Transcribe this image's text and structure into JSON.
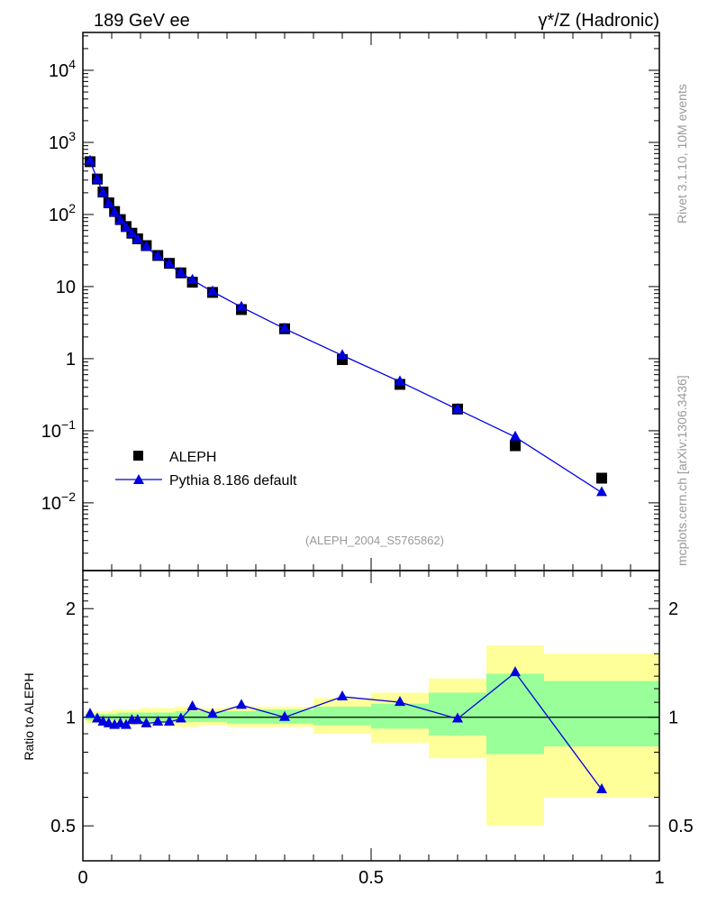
{
  "chart_data": [
    {
      "type": "scatter",
      "title_left": "189 GeV ee",
      "title_right": "γ*/Z (Hadronic)",
      "analysis_label": "(ALEPH_2004_S5765862)",
      "side_label_top": "Rivet 3.1.10,  10M events",
      "side_label_bottom": "mcplots.cern.ch [arXiv:1306.3436]",
      "yscale": "log",
      "ylim": [
        0.00115,
        33500
      ],
      "xlim": [
        0,
        1
      ],
      "ytick_labels": [
        "10^-2",
        "10^-1",
        "1",
        "10",
        "10^2",
        "10^3",
        "10^4"
      ],
      "ytick_values": [
        0.01,
        0.1,
        1,
        10,
        100,
        1000,
        10000
      ],
      "legend_position": "bottom-left",
      "x": [
        0.0125,
        0.025,
        0.035,
        0.045,
        0.055,
        0.065,
        0.075,
        0.085,
        0.095,
        0.11,
        0.13,
        0.15,
        0.17,
        0.19,
        0.225,
        0.275,
        0.35,
        0.45,
        0.55,
        0.65,
        0.75,
        0.9
      ],
      "series": [
        {
          "name": "ALEPH",
          "color": "#000000",
          "marker": "square",
          "values": [
            540,
            310,
            205,
            145,
            110,
            85,
            68,
            55,
            46,
            37,
            27,
            21,
            15.5,
            11.5,
            8.3,
            4.8,
            2.6,
            0.97,
            0.44,
            0.2,
            0.062,
            0.022
          ]
        },
        {
          "name": "Pythia 8.186 default",
          "color": "#0000e0",
          "marker": "triangle",
          "values": [
            551,
            307,
            199,
            139,
            105,
            82,
            65,
            54,
            45,
            35.5,
            26.2,
            20.4,
            15.3,
            12.3,
            8.5,
            5.2,
            2.6,
            1.11,
            0.48,
            0.198,
            0.082,
            0.0139
          ]
        }
      ]
    },
    {
      "type": "line",
      "ylabel": "Ratio to ALEPH",
      "yscale": "log",
      "ylim": [
        0.4,
        2.55
      ],
      "xlim": [
        0,
        1
      ],
      "ytick_labels": [
        "0.5",
        "1",
        "2"
      ],
      "ytick_values": [
        0.5,
        1,
        2
      ],
      "xtick_labels": [
        "0",
        "0.5",
        "1"
      ],
      "xtick_values": [
        0,
        0.5,
        1
      ],
      "x": [
        0.0125,
        0.025,
        0.035,
        0.045,
        0.055,
        0.065,
        0.075,
        0.085,
        0.095,
        0.11,
        0.13,
        0.15,
        0.17,
        0.19,
        0.225,
        0.275,
        0.35,
        0.45,
        0.55,
        0.65,
        0.75,
        0.9
      ],
      "ratio": [
        1.02,
        0.99,
        0.97,
        0.96,
        0.95,
        0.96,
        0.95,
        0.98,
        0.98,
        0.96,
        0.97,
        0.97,
        0.99,
        1.07,
        1.02,
        1.08,
        1.0,
        1.14,
        1.1,
        0.99,
        1.33,
        0.63
      ],
      "band_edges": [
        0.005,
        0.02,
        0.03,
        0.04,
        0.05,
        0.06,
        0.07,
        0.08,
        0.09,
        0.1,
        0.12,
        0.14,
        0.16,
        0.18,
        0.2,
        0.25,
        0.3,
        0.4,
        0.5,
        0.6,
        0.7,
        0.8,
        1.0
      ],
      "green_band": [
        [
          0.98,
          1.02
        ],
        [
          0.98,
          1.02
        ],
        [
          0.98,
          1.02
        ],
        [
          0.98,
          1.02
        ],
        [
          0.98,
          1.02
        ],
        [
          0.98,
          1.03
        ],
        [
          0.98,
          1.03
        ],
        [
          0.98,
          1.03
        ],
        [
          0.98,
          1.03
        ],
        [
          0.97,
          1.03
        ],
        [
          0.97,
          1.03
        ],
        [
          0.97,
          1.03
        ],
        [
          0.97,
          1.04
        ],
        [
          0.97,
          1.04
        ],
        [
          0.97,
          1.04
        ],
        [
          0.96,
          1.04
        ],
        [
          0.96,
          1.05
        ],
        [
          0.95,
          1.07
        ],
        [
          0.93,
          1.09
        ],
        [
          0.89,
          1.17
        ],
        [
          0.79,
          1.32
        ],
        [
          0.83,
          1.26
        ]
      ],
      "yellow_band": [
        [
          0.96,
          1.04
        ],
        [
          0.96,
          1.04
        ],
        [
          0.96,
          1.04
        ],
        [
          0.96,
          1.04
        ],
        [
          0.96,
          1.05
        ],
        [
          0.96,
          1.05
        ],
        [
          0.96,
          1.05
        ],
        [
          0.95,
          1.05
        ],
        [
          0.95,
          1.05
        ],
        [
          0.95,
          1.06
        ],
        [
          0.95,
          1.06
        ],
        [
          0.95,
          1.06
        ],
        [
          0.94,
          1.07
        ],
        [
          0.94,
          1.07
        ],
        [
          0.95,
          1.06
        ],
        [
          0.94,
          1.07
        ],
        [
          0.94,
          1.07
        ],
        [
          0.9,
          1.13
        ],
        [
          0.85,
          1.17
        ],
        [
          0.77,
          1.28
        ],
        [
          0.5,
          1.58
        ],
        [
          0.6,
          1.5
        ]
      ],
      "green_color": "#99ff99",
      "yellow_color": "#ffff99"
    }
  ]
}
